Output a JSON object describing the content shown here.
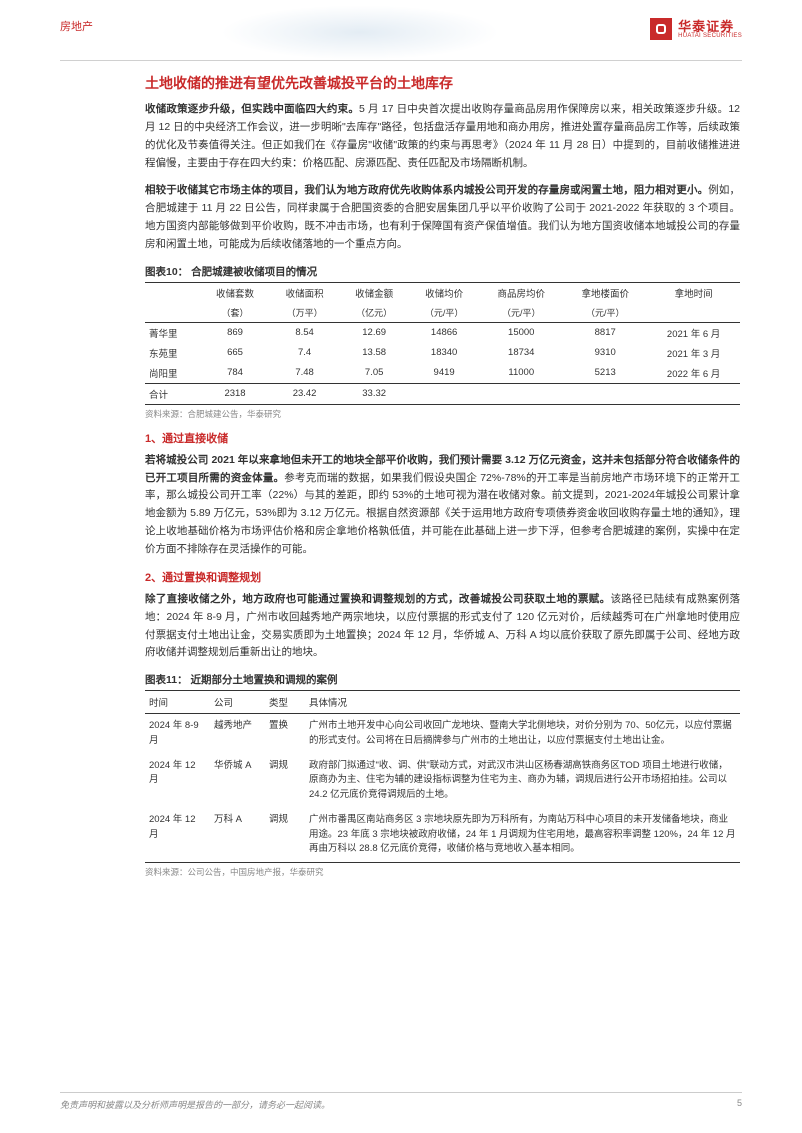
{
  "header": {
    "category": "房地产",
    "brand_cn": "华泰证券",
    "brand_en": "HUATAI SECURITIES",
    "brand_color": "#c92a2a"
  },
  "section_title": "土地收储的推进有望优先改善城投平台的土地库存",
  "para1_bold": "收储政策逐步升级，但实践中面临四大约束。",
  "para1_rest": "5 月 17 日中央首次提出收购存量商品房用作保障房以来，相关政策逐步升级。12 月 12 日的中央经济工作会议，进一步明晰\"去库存\"路径，包括盘活存量用地和商办用房，推进处置存量商品房工作等，后续政策的优化及节奏值得关注。但正如我们在《存量房\"收储\"政策的约束与再思考》（2024 年 11 月 28 日）中提到的，目前收储推进进程偏慢，主要由于存在四大约束：价格匹配、房源匹配、责任匹配及市场隔断机制。",
  "para2_bold": "相较于收储其它市场主体的项目，我们认为地方政府优先收购体系内城投公司开发的存量房或闲置土地，阻力相对更小。",
  "para2_rest": "例如，合肥城建于 11 月 22 日公告，同样隶属于合肥国资委的合肥安居集团几乎以平价收购了公司于 2021-2022 年获取的 3 个项目。地方国资内部能够做到平价收购，既不冲击市场，也有利于保障国有资产保值增值。我们认为地方国资收储本地城投公司的存量房和闲置土地，可能成为后续收储落地的一个重点方向。",
  "table10": {
    "caption": "图表10： 合肥城建被收储项目的情况",
    "columns": [
      "",
      "收储套数",
      "收储面积",
      "收储金额",
      "收储均价",
      "商品房均价",
      "拿地楼面价",
      "拿地时间"
    ],
    "units": [
      "",
      "（套）",
      "（万平）",
      "（亿元）",
      "（元/平）",
      "（元/平）",
      "（元/平）",
      ""
    ],
    "rows": [
      [
        "菁华里",
        "869",
        "8.54",
        "12.69",
        "14866",
        "15000",
        "8817",
        "2021 年 6 月"
      ],
      [
        "东苑里",
        "665",
        "7.4",
        "13.58",
        "18340",
        "18734",
        "9310",
        "2021 年 3 月"
      ],
      [
        "尚阳里",
        "784",
        "7.48",
        "7.05",
        "9419",
        "11000",
        "5213",
        "2022 年 6 月"
      ]
    ],
    "total": [
      "合计",
      "2318",
      "23.42",
      "33.32",
      "",
      "",
      "",
      ""
    ],
    "source": "资料来源：合肥城建公告，华泰研究"
  },
  "sub1_title": "1、通过直接收储",
  "para3_bold": "若将城投公司 2021 年以来拿地但未开工的地块全部平价收购，我们预计需要 3.12 万亿元资金，这并未包括部分符合收储条件的已开工项目所需的资金体量。",
  "para3_rest": "参考克而瑞的数据，如果我们假设央国企 72%-78%的开工率是当前房地产市场环境下的正常开工率，那么城投公司开工率（22%）与其的差距，即约 53%的土地可视为潜在收储对象。前文提到，2021-2024年城投公司累计拿地金额为 5.89 万亿元，53%即为 3.12 万亿元。根据自然资源部《关于运用地方政府专项债券资金收回收购存量土地的通知》，理论上收地基础价格为市场评估价格和房企拿地价格孰低值，并可能在此基础上进一步下浮，但参考合肥城建的案例，实操中在定价方面不排除存在灵活操作的可能。",
  "sub2_title": "2、通过置换和调整规划",
  "para4_bold": "除了直接收储之外，地方政府也可能通过置换和调整规划的方式，改善城投公司获取土地的票赋。",
  "para4_rest": "该路径已陆续有成熟案例落地：2024 年 8-9 月，广州市收回越秀地产两宗地块，以应付票据的形式支付了 120 亿元对价，后续越秀可在广州拿地时使用应付票据支付土地出让金，交易实质即为土地置换；2024 年 12 月，华侨城 A、万科 A 均以底价获取了原先即属于公司、经地方政府收储并调整规划后重新出让的地块。",
  "table11": {
    "caption": "图表11： 近期部分土地置换和调规的案例",
    "columns": [
      "时间",
      "公司",
      "类型",
      "具体情况"
    ],
    "rows": [
      [
        "2024 年 8-9 月",
        "越秀地产",
        "置换",
        "广州市土地开发中心向公司收回广龙地块、暨南大学北侧地块，对价分别为 70、50亿元，以应付票据的形式支付。公司将在日后摘牌参与广州市的土地出让，以应付票据支付土地出让金。"
      ],
      [
        "2024 年 12 月",
        "华侨城 A",
        "调规",
        "政府部门拟通过\"收、调、供\"联动方式，对武汉市洪山区杨春湖高铁商务区TOD 项目土地进行收储，原商办为主、住宅为辅的建设指标调整为住宅为主、商办为辅，调规后进行公开市场招拍挂。公司以 24.2 亿元底价竞得调规后的土地。"
      ],
      [
        "2024 年 12 月",
        "万科 A",
        "调规",
        "广州市番禺区南站商务区 3 宗地块原先即为万科所有，为南站万科中心项目的未开发储备地块，商业用途。23 年底 3 宗地块被政府收储，24 年 1 月调规为住宅用地，最高容积率调整 120%，24 年 12 月再由万科以 28.8 亿元底价竞得，收储价格与竞地收入基本相同。"
      ]
    ],
    "source": "资料来源：公司公告，中国房地产报，华泰研究"
  },
  "footer": {
    "disclaimer": "免责声明和披露以及分析师声明是报告的一部分，请务必一起阅读。",
    "page": "5"
  },
  "colors": {
    "accent": "#c92a2a",
    "text": "#333333",
    "muted": "#888888",
    "rule": "#d0d0d0"
  },
  "fonts": {
    "body_size_pt": 10.5,
    "title_size_pt": 14,
    "table_size_pt": 9.5
  }
}
